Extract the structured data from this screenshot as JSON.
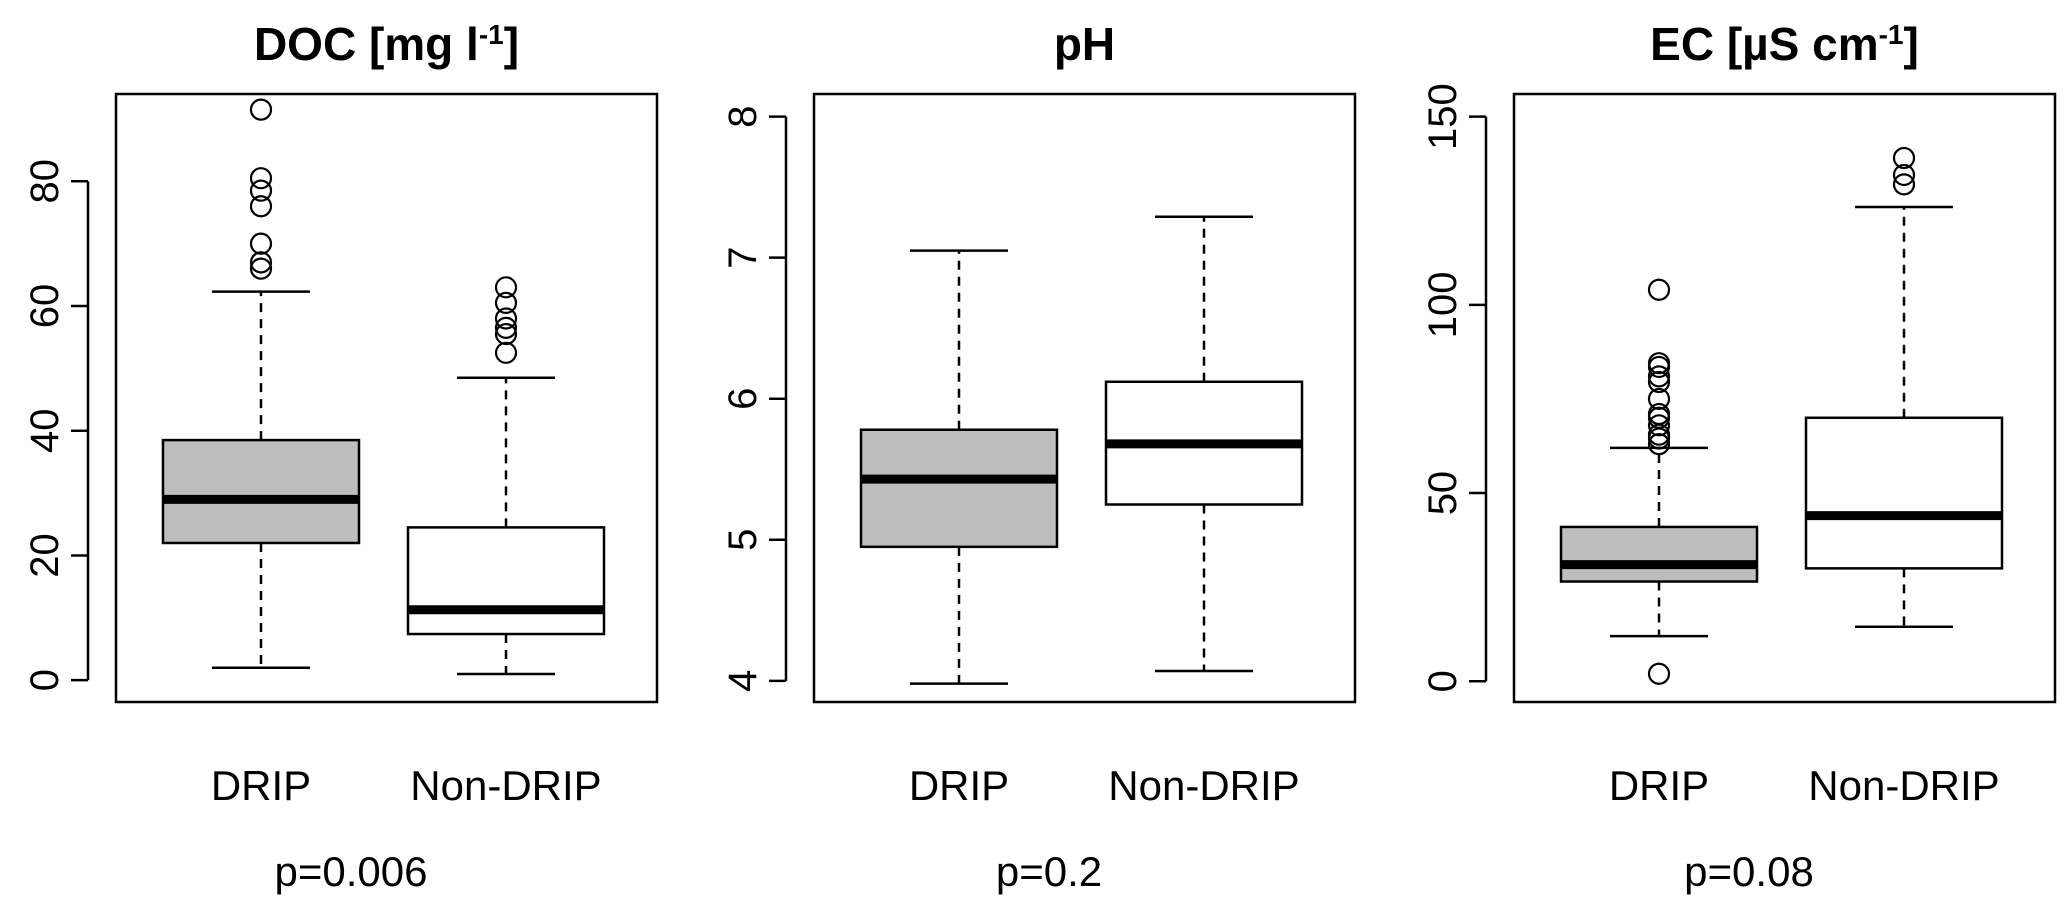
{
  "chart_data": [
    {
      "type": "box",
      "title": "DOC [mg l",
      "title_sup": "-1",
      "title_suffix": "]",
      "categories": [
        "DRIP",
        "Non-DRIP"
      ],
      "yticks": [
        0,
        20,
        40,
        60,
        80
      ],
      "ylim": [
        -3.5,
        94
      ],
      "boxes": [
        {
          "category": "DRIP",
          "whisker_low": 2,
          "q1": 22,
          "median": 29,
          "q3": 38.5,
          "whisker_high": 62.3,
          "outliers": [
            66,
            67,
            70,
            76,
            78.5,
            80.5,
            91.5
          ],
          "fill": "#bebebe"
        },
        {
          "category": "Non-DRIP",
          "whisker_low": 1,
          "q1": 7.4,
          "median": 11.3,
          "q3": 24.5,
          "whisker_high": 48.5,
          "outliers": [
            52.5,
            55.5,
            56.5,
            58,
            60.5,
            63
          ],
          "fill": "#ffffff"
        }
      ],
      "footer": "p=0.006"
    },
    {
      "type": "box",
      "title": "pH",
      "title_sup": "",
      "title_suffix": "",
      "categories": [
        "DRIP",
        "Non-DRIP"
      ],
      "yticks": [
        4,
        5,
        6,
        7,
        8
      ],
      "ylim": [
        3.85,
        8.16
      ],
      "boxes": [
        {
          "category": "DRIP",
          "whisker_low": 3.98,
          "q1": 4.95,
          "median": 5.43,
          "q3": 5.78,
          "whisker_high": 7.05,
          "outliers": [],
          "fill": "#bebebe"
        },
        {
          "category": "Non-DRIP",
          "whisker_low": 4.07,
          "q1": 5.25,
          "median": 5.68,
          "q3": 6.12,
          "whisker_high": 7.29,
          "outliers": [],
          "fill": "#ffffff"
        }
      ],
      "footer": "p=0.2"
    },
    {
      "type": "box",
      "title": "EC [µS cm",
      "title_sup": "-1",
      "title_suffix": "]",
      "categories": [
        "DRIP",
        "Non-DRIP"
      ],
      "yticks": [
        0,
        50,
        100,
        150
      ],
      "ylim": [
        -5.5,
        156
      ],
      "boxes": [
        {
          "category": "DRIP",
          "whisker_low": 12,
          "q1": 26.5,
          "median": 31,
          "q3": 41,
          "whisker_high": 62,
          "outliers": [
            2,
            63,
            64.5,
            65.5,
            68,
            70,
            71,
            75,
            79.5,
            81,
            83.5,
            84.5,
            104
          ],
          "fill": "#bebebe"
        },
        {
          "category": "Non-DRIP",
          "whisker_low": 14.5,
          "q1": 30,
          "median": 44,
          "q3": 70,
          "whisker_high": 126,
          "outliers": [
            132,
            134.5,
            139
          ],
          "fill": "#ffffff"
        }
      ],
      "footer": "p=0.08"
    }
  ]
}
